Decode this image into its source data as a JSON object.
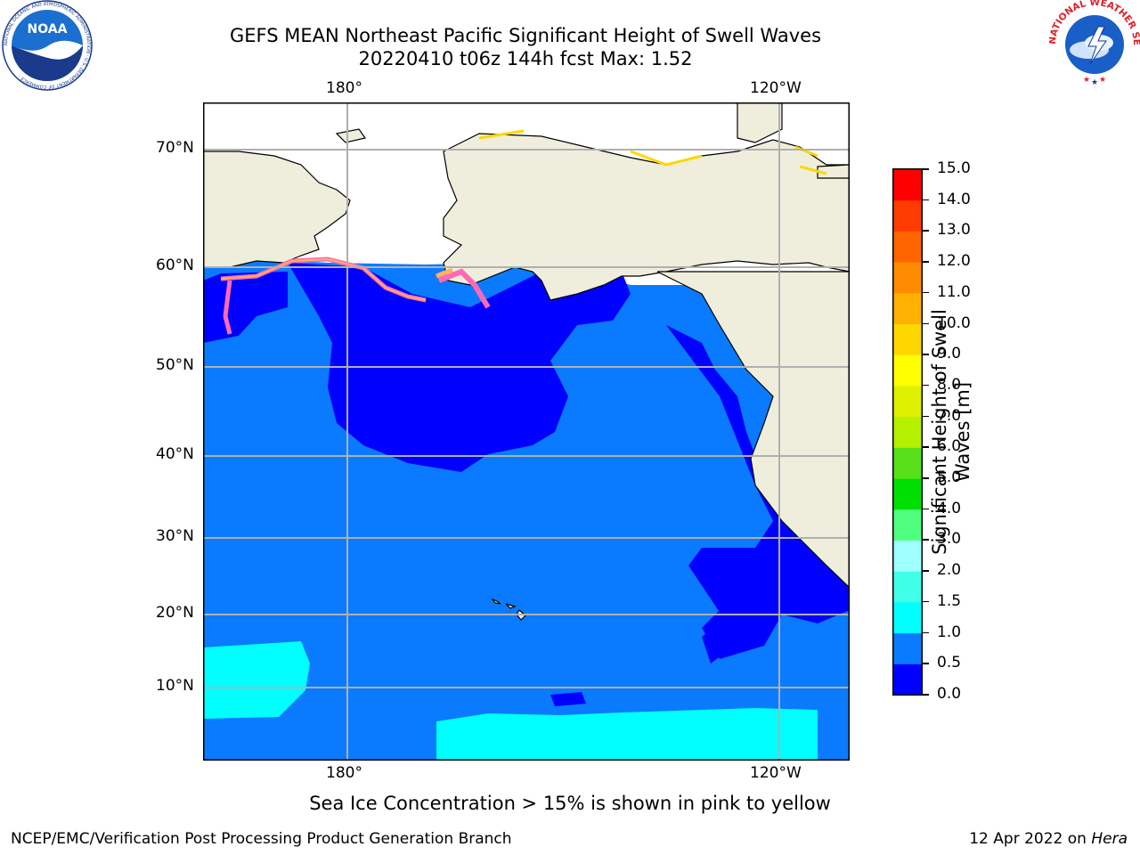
{
  "title_line1": "GEFS MEAN Northeast Pacific Significant Height of Swell Waves",
  "title_line2": "20220410 t06z 144h fcst   Max: 1.52",
  "lon_labels": [
    "180°",
    "120°W"
  ],
  "lat_labels": [
    "70°N",
    "60°N",
    "50°N",
    "40°N",
    "30°N",
    "20°N",
    "10°N"
  ],
  "colorbar": {
    "label": "Significant Height of Swell Waves [m]",
    "ticks": [
      "0.0",
      "0.5",
      "1.0",
      "1.5",
      "2.0",
      "3.0",
      "4.0",
      "5.0",
      "6.0",
      "7.0",
      "8.0",
      "9.0",
      "10.0",
      "11.0",
      "12.0",
      "13.0",
      "14.0",
      "15.0"
    ],
    "colors": [
      "#0000ff",
      "#0a7bff",
      "#00ffff",
      "#40ffe8",
      "#a0ffff",
      "#50ff80",
      "#00e000",
      "#5ae01a",
      "#b4f000",
      "#dcf000",
      "#ffff00",
      "#ffd700",
      "#ffb000",
      "#ff8c00",
      "#ff6400",
      "#ff3c00",
      "#ff0000"
    ]
  },
  "map": {
    "ocean_color": "#0a7bff",
    "low_swell_color": "#0000ff",
    "mid_swell_color": "#00ffff",
    "land_color": "#efeedd",
    "ice_colors": [
      "#ff69b4",
      "#ffb060",
      "#ffd700"
    ]
  },
  "footnote": "Sea Ice Concentration > 15% is shown in pink to yellow",
  "credit": "NCEP/EMC/Verification Post Processing Product Generation Branch",
  "date": "12 Apr 2022 on",
  "host": "Hera",
  "logos": {
    "noaa_text": "NOAA",
    "noaa_ring": "NATIONAL OCEANIC AND ATMOSPHERIC ADMINISTRATION · U.S. DEPARTMENT OF COMMERCE ·",
    "nws_ring": "NATIONAL WEATHER SERVICE"
  }
}
